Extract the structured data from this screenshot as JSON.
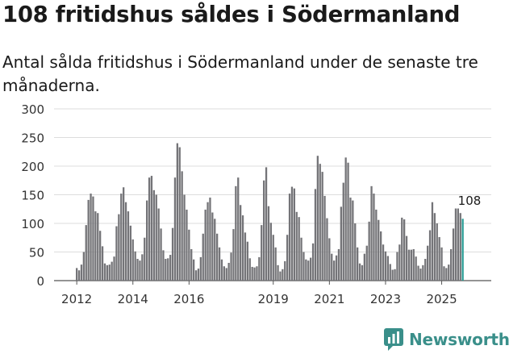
{
  "title": "108 fritidshus såldes i Södermanland",
  "subtitle": "Antal sålda fritidshus i Södermanland under de senaste tre månaderna.",
  "brand": "Newsworthy",
  "colors": {
    "bar": "#747478",
    "highlight": "#2a9c95",
    "grid": "#dddddd",
    "brand": "#3a8f8a"
  },
  "chart_data": {
    "type": "bar",
    "title": "108 fritidshus såldes i Södermanland",
    "xlabel": "",
    "ylabel": "",
    "ylim": [
      0,
      300
    ],
    "yticks": [
      0,
      50,
      100,
      150,
      200,
      250,
      300
    ],
    "xtick_labels": [
      "2012",
      "2014",
      "2016",
      "2019",
      "2021",
      "2023",
      "2025"
    ],
    "highlight_label": "108",
    "values": [
      22,
      18,
      28,
      50,
      97,
      141,
      152,
      147,
      121,
      118,
      87,
      60,
      30,
      27,
      28,
      33,
      42,
      95,
      116,
      152,
      163,
      137,
      121,
      96,
      72,
      51,
      38,
      35,
      46,
      75,
      140,
      180,
      183,
      158,
      150,
      126,
      91,
      53,
      38,
      39,
      45,
      92,
      180,
      240,
      233,
      191,
      150,
      124,
      89,
      55,
      37,
      18,
      21,
      41,
      82,
      124,
      137,
      145,
      119,
      108,
      82,
      58,
      37,
      25,
      22,
      31,
      49,
      90,
      165,
      180,
      132,
      114,
      84,
      68,
      39,
      24,
      23,
      25,
      41,
      97,
      175,
      198,
      130,
      101,
      80,
      58,
      27,
      16,
      20,
      34,
      80,
      152,
      164,
      161,
      120,
      111,
      75,
      50,
      37,
      35,
      40,
      65,
      160,
      218,
      204,
      190,
      148,
      109,
      74,
      47,
      35,
      44,
      55,
      129,
      171,
      215,
      206,
      145,
      140,
      100,
      58,
      30,
      27,
      47,
      61,
      103,
      165,
      152,
      124,
      106,
      86,
      63,
      51,
      43,
      29,
      19,
      20,
      50,
      63,
      110,
      107,
      78,
      54,
      54,
      55,
      42,
      26,
      21,
      27,
      38,
      61,
      88,
      137,
      118,
      100,
      76,
      58,
      25,
      22,
      28,
      55,
      91,
      126,
      126,
      118,
      108
    ]
  }
}
